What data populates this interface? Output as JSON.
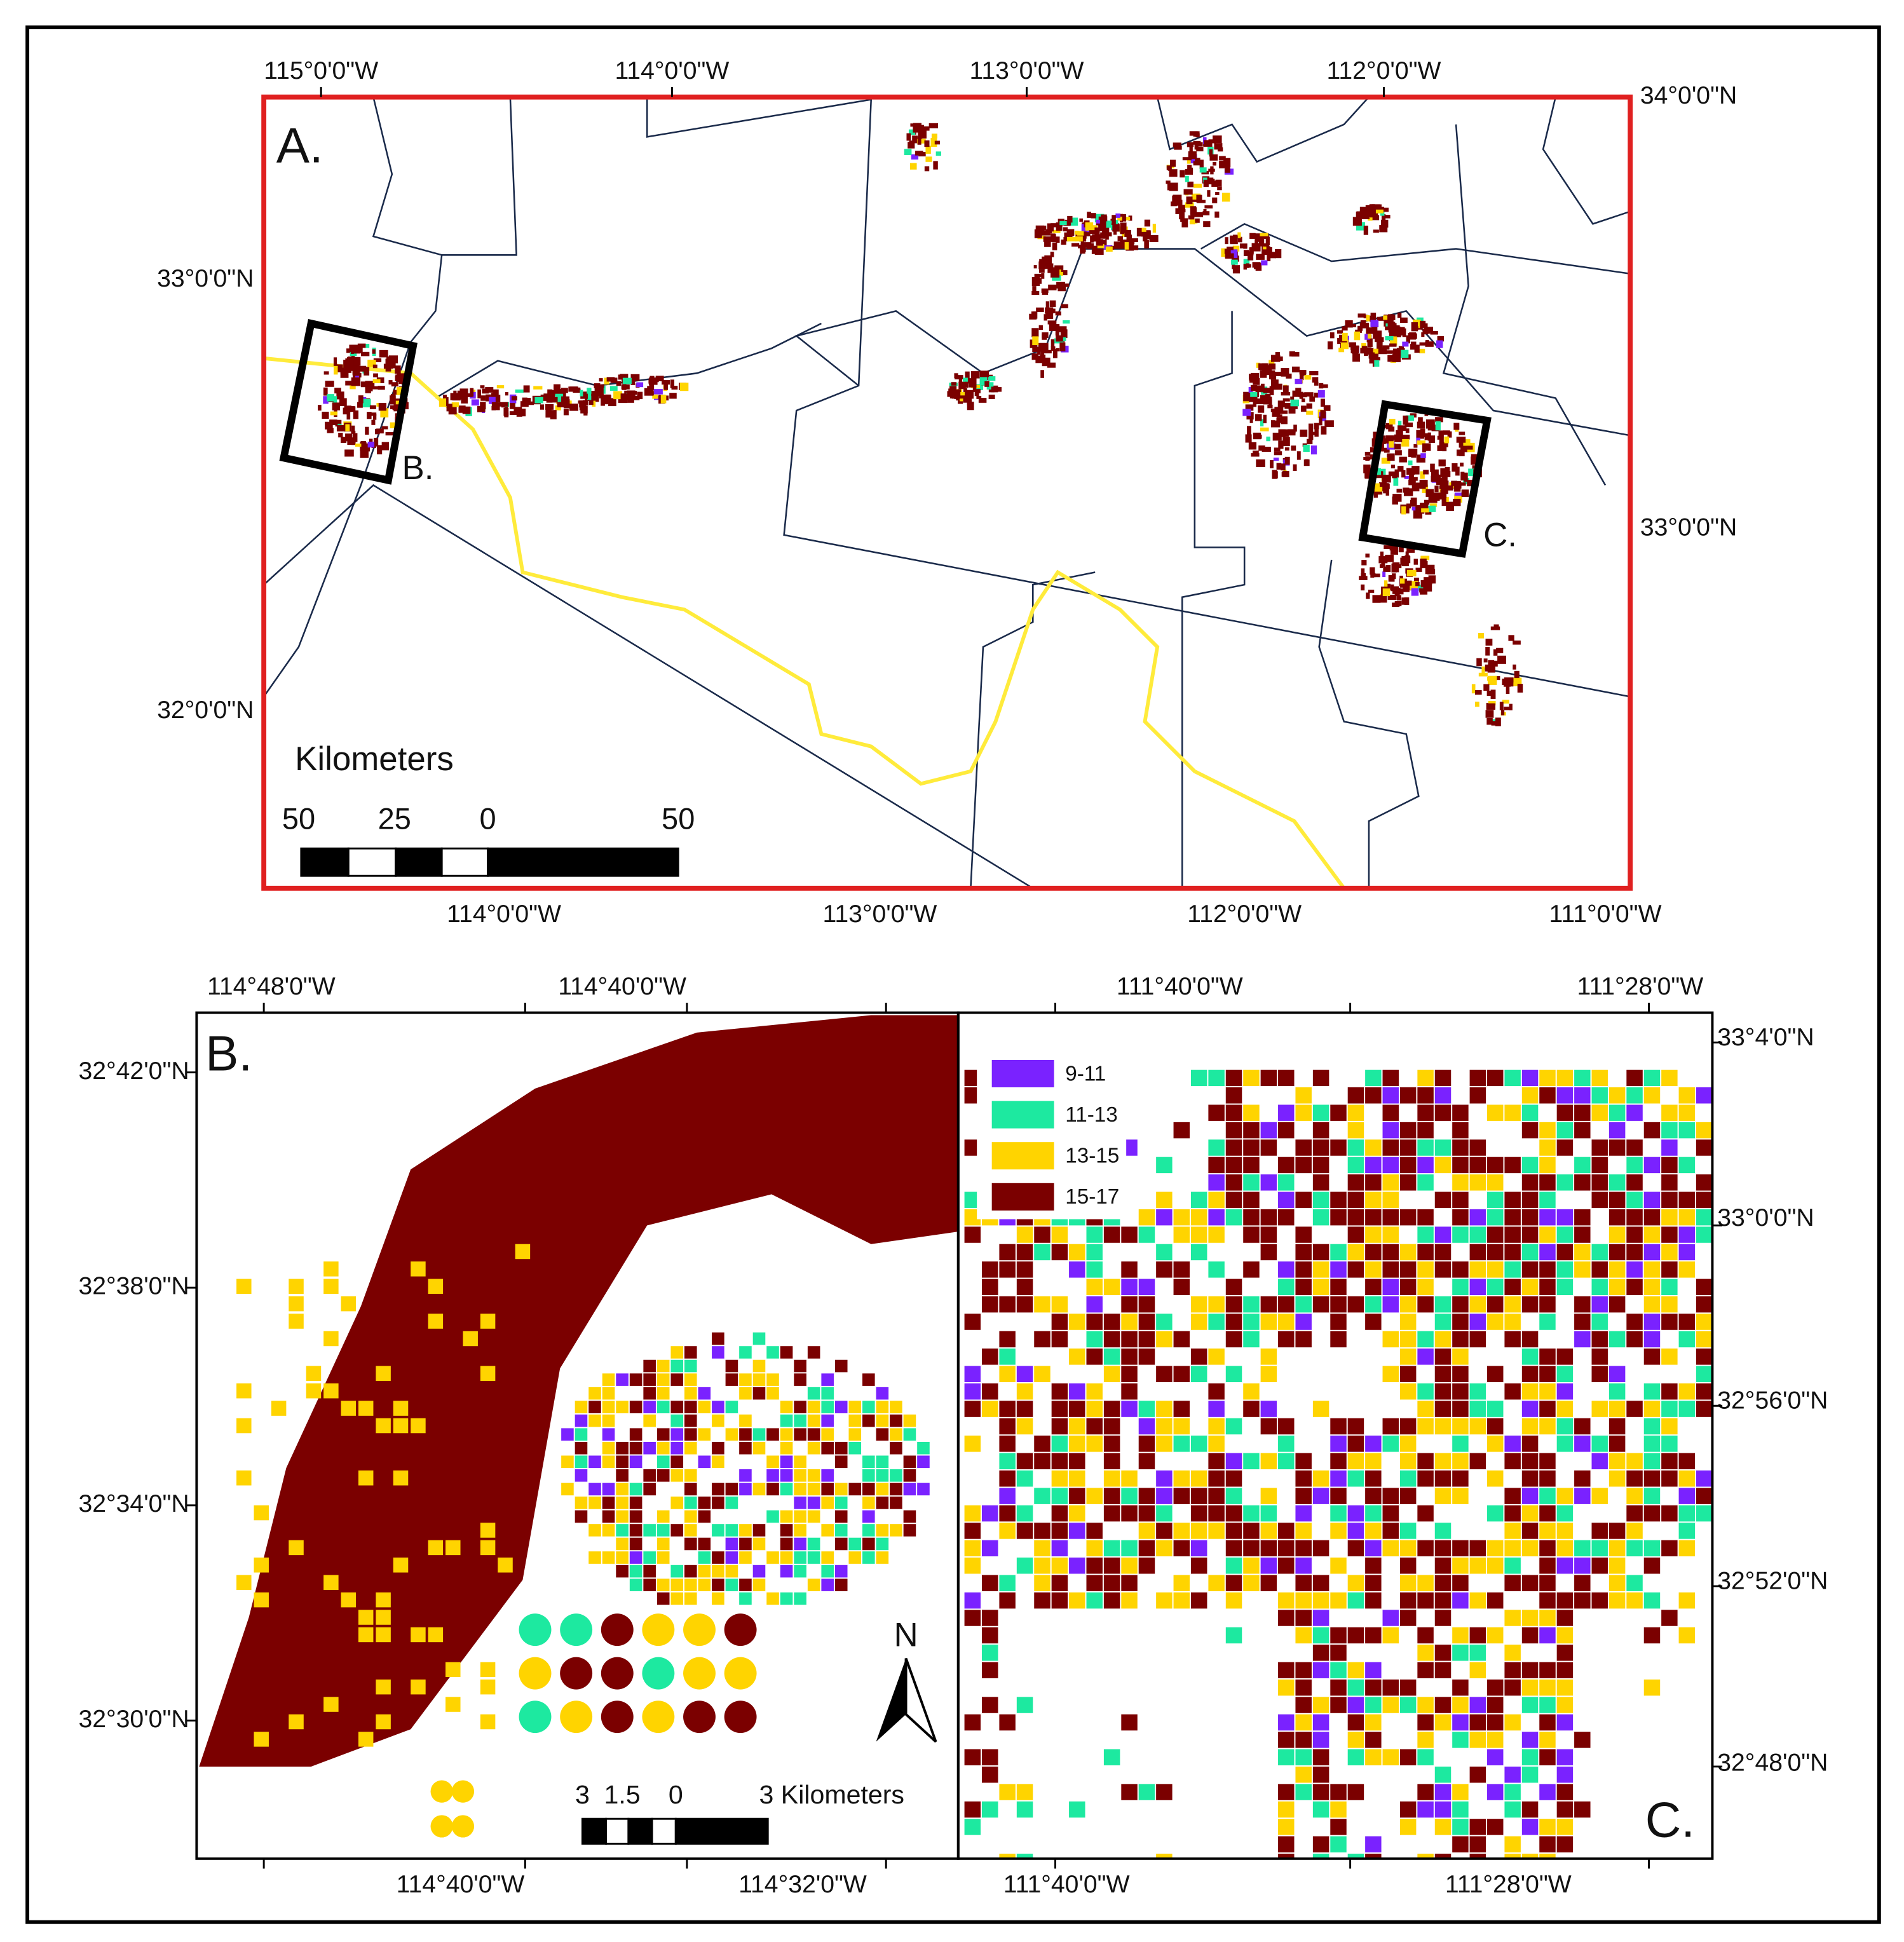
{
  "panel_a": {
    "label": "A.",
    "top_labels": [
      "115°0'0\"W",
      "114°0'0\"W",
      "113°0'0\"W",
      "112°0'0\"W"
    ],
    "bottom_labels": [
      "114°0'0\"W",
      "113°0'0\"W",
      "112°0'0\"W",
      "111°0'0\"W"
    ],
    "left_labels": [
      "33°0'0\"N",
      "32°0'0\"N"
    ],
    "right_labels": [
      "34°0'0\"N",
      "33°0'0\"N"
    ],
    "box_labels": [
      "B.",
      "C."
    ],
    "scale_title": "Kilometers",
    "scale_labels": [
      "50",
      "25",
      "0",
      "50"
    ]
  },
  "panel_b": {
    "label": "B.",
    "top_labels": [
      "114°48'0\"W",
      "114°40'0\"W"
    ],
    "left_labels": [
      "32°42'0\"N",
      "32°38'0\"N",
      "32°34'0\"N",
      "32°30'0\"N"
    ],
    "bottom_labels": [
      "114°40'0\"W",
      "114°32'0\"W"
    ],
    "scale_labels": [
      "3",
      "1.5",
      "0",
      "3 Kilometers"
    ],
    "north": "N"
  },
  "panel_c": {
    "label": "C.",
    "top_labels": [
      "111°40'0\"W",
      "111°28'0\"W"
    ],
    "right_labels": [
      "33°4'0\"N",
      "33°0'0\"N",
      "32°56'0\"N",
      "32°52'0\"N",
      "32°48'0\"N"
    ],
    "bottom_labels": [
      "111°40'0\"W",
      "111°28'0\"W"
    ],
    "legend": [
      {
        "label": "9-11",
        "color": "#7a22ff"
      },
      {
        "label": "11-13",
        "color": "#1de9a0"
      },
      {
        "label": "13-15",
        "color": "#ffd400"
      },
      {
        "label": "15-17",
        "color": "#7b0000"
      }
    ]
  }
}
